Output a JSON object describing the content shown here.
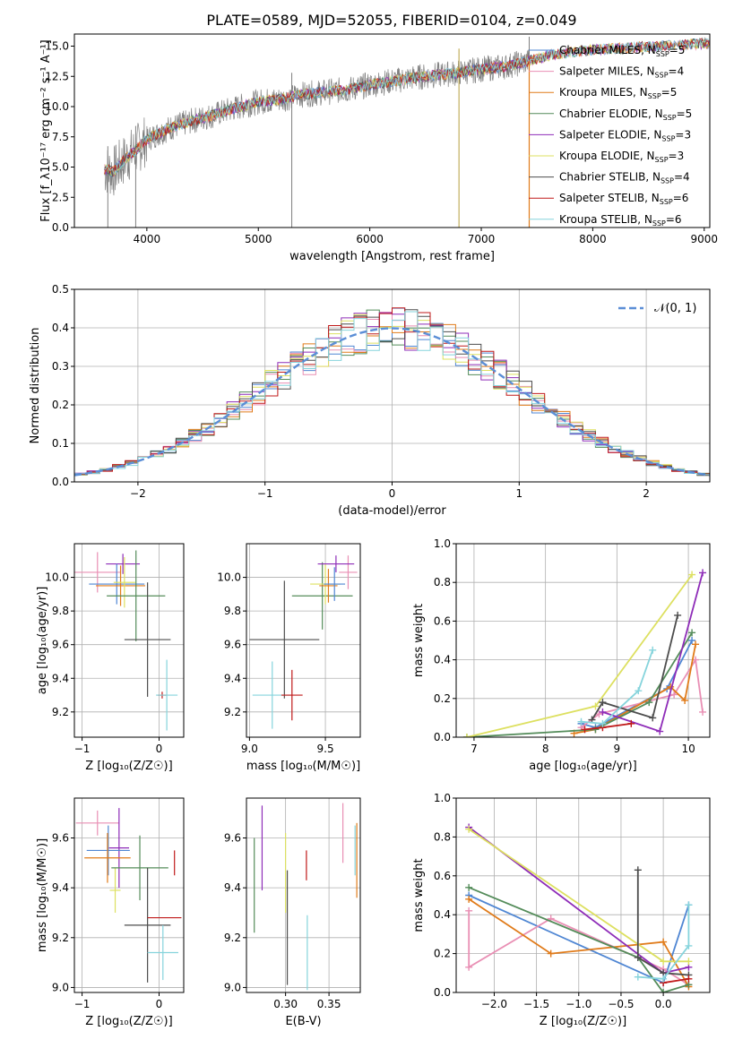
{
  "figure": {
    "title": "PLATE=0589, MJD=52055, FIBERID=0104, z=0.049"
  },
  "colors": {
    "Chabrier MILES": "#4f86d3",
    "Salpeter MILES": "#e98fb4",
    "Kroupa MILES": "#e07b1a",
    "Chabrier ELODIE": "#548c5a",
    "Salpeter ELODIE": "#8e2cb8",
    "Kroupa ELODIE": "#dde060",
    "Chabrier STELIB": "#4d4d4d",
    "Salpeter STELIB": "#c01a1a",
    "Kroupa STELIB": "#86d4dc",
    "data_gray": "#808080",
    "normal_curve": "#5b8ed6"
  },
  "chart_data": [
    {
      "id": "spectrum",
      "type": "line",
      "xlabel": "wavelength [Angstrom, rest frame]",
      "ylabel": "Flux [f_λ10⁻¹⁷ erg cm⁻² s⁻¹ A⁻¹]",
      "xlim": [
        3350,
        9050
      ],
      "ylim": [
        0,
        16
      ],
      "xticks": [
        4000,
        5000,
        6000,
        7000,
        8000,
        9000
      ],
      "yticks": [
        0.0,
        2.5,
        5.0,
        7.5,
        10.0,
        12.5,
        15.0
      ],
      "grid": false,
      "legend_loc": "right",
      "legend": [
        {
          "name": "Chabrier MILES",
          "nssp": "5"
        },
        {
          "name": "Salpeter MILES",
          "nssp": "4"
        },
        {
          "name": "Kroupa MILES",
          "nssp": "5"
        },
        {
          "name": "Chabrier ELODIE",
          "nssp": "5"
        },
        {
          "name": "Salpeter ELODIE",
          "nssp": "3"
        },
        {
          "name": "Kroupa ELODIE",
          "nssp": "3"
        },
        {
          "name": "Chabrier STELIB",
          "nssp": "4"
        },
        {
          "name": "Salpeter STELIB",
          "nssp": "6"
        },
        {
          "name": "Kroupa STELIB",
          "nssp": "6"
        }
      ],
      "data_trend": {
        "x": [
          3620,
          3700,
          3800,
          3900,
          4000,
          4200,
          4400,
          4600,
          4800,
          5000,
          5200,
          5400,
          5600,
          5800,
          6000,
          6200,
          6400,
          6600,
          6800,
          7000,
          7200,
          7400,
          7600,
          7800,
          8000,
          8200,
          8400,
          8600,
          8800,
          9000
        ],
        "y": [
          4.8,
          4.6,
          5.6,
          6.4,
          7.3,
          8.2,
          8.8,
          9.3,
          9.9,
          10.4,
          10.6,
          11.0,
          11.2,
          11.4,
          11.8,
          12.1,
          12.4,
          12.6,
          12.8,
          13.1,
          13.3,
          13.7,
          14.2,
          14.5,
          14.7,
          14.8,
          14.9,
          15.0,
          15.1,
          15.2
        ]
      },
      "data_range": [
        3620,
        7430
      ],
      "model_range": [
        3620,
        9050
      ],
      "spikes": [
        3650,
        3900,
        5300,
        6800,
        7430
      ]
    },
    {
      "id": "residuals",
      "type": "histogram",
      "xlabel": "(data-model)/error",
      "ylabel": "Normed distribution",
      "xlim": [
        -2.5,
        2.5
      ],
      "ylim": [
        0,
        0.5
      ],
      "xticks": [
        -2,
        -1,
        0,
        1,
        2
      ],
      "yticks": [
        0.0,
        0.1,
        0.2,
        0.3,
        0.4,
        0.5
      ],
      "grid": true,
      "legend_loc": "upper right",
      "curve_label": "𝒩(0, 1)",
      "bin_width": 0.1
    },
    {
      "id": "age_vs_Z",
      "type": "errorbar",
      "xlabel": "Z [log₁₀(Z/Z☉)]",
      "ylabel": "age  [log₁₀(age/yr)]",
      "xlim": [
        -1.1,
        0.32
      ],
      "ylim": [
        9.05,
        10.2
      ],
      "xticks": [
        -1,
        0
      ],
      "yticks": [
        9.2,
        9.4,
        9.6,
        9.8,
        10.0
      ],
      "grid": true,
      "points": [
        {
          "s": "Salpeter MILES",
          "x": -0.8,
          "xe": 0.3,
          "y": 10.03,
          "ye": 0.12
        },
        {
          "s": "Salpeter ELODIE",
          "x": -0.47,
          "xe": 0.22,
          "y": 10.08,
          "ye": 0.06
        },
        {
          "s": "Chabrier MILES",
          "x": -0.55,
          "xe": 0.36,
          "y": 9.96,
          "ye": 0.12
        },
        {
          "s": "Kroupa MILES",
          "x": -0.5,
          "xe": 0.32,
          "y": 9.95,
          "ye": 0.12
        },
        {
          "s": "Kroupa ELODIE",
          "x": -0.45,
          "xe": 0.14,
          "y": 9.97,
          "ye": 0.15
        },
        {
          "s": "Chabrier ELODIE",
          "x": -0.3,
          "xe": 0.38,
          "y": 9.89,
          "ye": 0.27
        },
        {
          "s": "Chabrier STELIB",
          "x": -0.15,
          "xe": 0.3,
          "y": 9.63,
          "ye": 0.34
        },
        {
          "s": "Salpeter STELIB",
          "x": 0.04,
          "xe": 0.06,
          "y": 9.3,
          "ye": 0.02
        },
        {
          "s": "Kroupa STELIB",
          "x": 0.1,
          "xe": 0.14,
          "y": 9.3,
          "ye": 0.21
        }
      ]
    },
    {
      "id": "age_vs_mass",
      "type": "errorbar",
      "xlabel": "mass [log₁₀(M/M☉)]",
      "ylabel": "",
      "xlim": [
        8.98,
        9.73
      ],
      "ylim": [
        9.05,
        10.2
      ],
      "xticks": [
        9.0,
        9.5
      ],
      "yticks": [
        9.2,
        9.4,
        9.6,
        9.8,
        10.0
      ],
      "grid": true,
      "points": [
        {
          "s": "Kroupa STELIB",
          "x": 9.15,
          "xe": 0.13,
          "y": 9.3,
          "ye": 0.2
        },
        {
          "s": "Chabrier STELIB",
          "x": 9.23,
          "xe": 0.23,
          "y": 9.63,
          "ye": 0.35
        },
        {
          "s": "Salpeter STELIB",
          "x": 9.28,
          "xe": 0.07,
          "y": 9.3,
          "ye": 0.15
        },
        {
          "s": "Chabrier ELODIE",
          "x": 9.48,
          "xe": 0.2,
          "y": 9.89,
          "ye": 0.2
        },
        {
          "s": "Kroupa ELODIE",
          "x": 9.5,
          "xe": 0.1,
          "y": 9.96,
          "ye": 0.12
        },
        {
          "s": "Kroupa MILES",
          "x": 9.52,
          "xe": 0.06,
          "y": 9.95,
          "ye": 0.1
        },
        {
          "s": "Chabrier MILES",
          "x": 9.56,
          "xe": 0.07,
          "y": 9.96,
          "ye": 0.1
        },
        {
          "s": "Salpeter MILES",
          "x": 9.65,
          "xe": 0.06,
          "y": 10.03,
          "ye": 0.1
        },
        {
          "s": "Salpeter ELODIE",
          "x": 9.57,
          "xe": 0.12,
          "y": 10.08,
          "ye": 0.05
        }
      ]
    },
    {
      "id": "massweight_vs_age",
      "type": "line",
      "xlabel": "age  [log₁₀(age/yr)]",
      "ylabel": "mass weight",
      "xlim": [
        6.75,
        10.3
      ],
      "ylim": [
        0,
        1
      ],
      "xticks": [
        7,
        8,
        9,
        10
      ],
      "yticks": [
        0.0,
        0.2,
        0.4,
        0.6,
        0.8,
        1.0
      ],
      "grid": true,
      "series": [
        {
          "s": "Chabrier MILES",
          "x": [
            8.5,
            8.7,
            9.7,
            10.05
          ],
          "y": [
            0.07,
            0.05,
            0.25,
            0.5
          ]
        },
        {
          "s": "Salpeter MILES",
          "x": [
            8.5,
            8.75,
            9.8,
            10.1,
            10.2
          ],
          "y": [
            0.05,
            0.12,
            0.22,
            0.4,
            0.13
          ]
        },
        {
          "s": "Kroupa MILES",
          "x": [
            8.4,
            8.7,
            9.75,
            9.95,
            10.1
          ],
          "y": [
            0.02,
            0.04,
            0.26,
            0.19,
            0.48
          ]
        },
        {
          "s": "Chabrier ELODIE",
          "x": [
            6.9,
            8.7,
            9.45,
            10.05
          ],
          "y": [
            0.0,
            0.04,
            0.18,
            0.54
          ]
        },
        {
          "s": "Salpeter ELODIE",
          "x": [
            8.8,
            9.6,
            10.2
          ],
          "y": [
            0.13,
            0.03,
            0.85
          ]
        },
        {
          "s": "Kroupa ELODIE",
          "x": [
            6.9,
            8.7,
            10.05
          ],
          "y": [
            0.0,
            0.16,
            0.84
          ]
        },
        {
          "s": "Chabrier STELIB",
          "x": [
            8.65,
            8.8,
            9.5,
            9.85
          ],
          "y": [
            0.09,
            0.18,
            0.1,
            0.63
          ]
        },
        {
          "s": "Salpeter STELIB",
          "x": [
            8.55,
            8.8,
            9.2
          ],
          "y": [
            0.04,
            0.05,
            0.07
          ]
        },
        {
          "s": "Kroupa STELIB",
          "x": [
            8.5,
            8.8,
            9.3,
            9.5
          ],
          "y": [
            0.08,
            0.07,
            0.24,
            0.45
          ]
        }
      ]
    },
    {
      "id": "mass_vs_Z",
      "type": "errorbar",
      "xlabel": "Z [log₁₀(Z/Z☉)]",
      "ylabel": "mass [log₁₀(M/M☉)]",
      "xlim": [
        -1.1,
        0.32
      ],
      "ylim": [
        8.98,
        9.76
      ],
      "xticks": [
        -1,
        0
      ],
      "yticks": [
        9.0,
        9.2,
        9.4,
        9.6
      ],
      "grid": true,
      "points": [
        {
          "s": "Salpeter MILES",
          "x": -0.8,
          "xe": 0.28,
          "y": 9.66,
          "ye": 0.05
        },
        {
          "s": "Salpeter ELODIE",
          "x": -0.52,
          "xe": 0.13,
          "y": 9.56,
          "ye": 0.16
        },
        {
          "s": "Chabrier MILES",
          "x": -0.66,
          "xe": 0.28,
          "y": 9.55,
          "ye": 0.1
        },
        {
          "s": "Kroupa MILES",
          "x": -0.67,
          "xe": 0.3,
          "y": 9.52,
          "ye": 0.1
        },
        {
          "s": "Kroupa ELODIE",
          "x": -0.57,
          "xe": 0.07,
          "y": 9.39,
          "ye": 0.09
        },
        {
          "s": "Chabrier ELODIE",
          "x": -0.25,
          "xe": 0.37,
          "y": 9.48,
          "ye": 0.13
        },
        {
          "s": "Chabrier STELIB",
          "x": -0.15,
          "xe": 0.3,
          "y": 9.25,
          "ye": 0.23
        },
        {
          "s": "Salpeter STELIB",
          "x": 0.07,
          "xe": 0.22,
          "y": 9.28,
          "ye": 0.0
        },
        {
          "s": "Kroupa STELIB",
          "x": 0.05,
          "xe": 0.2,
          "y": 9.14,
          "ye": 0.11
        },
        {
          "s": "Salpeter STELIB",
          "x": 0.2,
          "xe": 0.0,
          "y": 9.5,
          "ye": 0.05
        }
      ]
    },
    {
      "id": "mass_vs_EBV",
      "type": "errorbar",
      "xlabel": "E(B-V)",
      "ylabel": "",
      "xlim": [
        0.255,
        0.386
      ],
      "ylim": [
        8.98,
        9.76
      ],
      "xticks": [
        0.3,
        0.35
      ],
      "yticks": [
        9.0,
        9.2,
        9.4,
        9.6
      ],
      "grid": true,
      "points": [
        {
          "s": "Chabrier ELODIE",
          "x": 0.264,
          "ye": 0.19,
          "y": 9.41
        },
        {
          "s": "Salpeter ELODIE",
          "x": 0.273,
          "ye": 0.17,
          "y": 9.56
        },
        {
          "s": "Kroupa ELODIE",
          "x": 0.3,
          "ye": 0.16,
          "y": 9.46
        },
        {
          "s": "Chabrier STELIB",
          "x": 0.302,
          "ye": 0.23,
          "y": 9.24
        },
        {
          "s": "Salpeter STELIB",
          "x": 0.324,
          "ye": 0.06,
          "y": 9.49
        },
        {
          "s": "Kroupa STELIB",
          "x": 0.325,
          "ye": 0.15,
          "y": 9.14
        },
        {
          "s": "Salpeter MILES",
          "x": 0.366,
          "ye": 0.12,
          "y": 9.62
        },
        {
          "s": "Kroupa MILES",
          "x": 0.382,
          "ye": 0.15,
          "y": 9.51
        },
        {
          "s": "Kroupa STELIB",
          "x": 0.38,
          "ye": 0.1,
          "y": 9.55
        }
      ]
    },
    {
      "id": "massweight_vs_Z",
      "type": "line",
      "xlabel": "Z [log₁₀(Z/Z☉)]",
      "ylabel": "mass weight",
      "xlim": [
        -2.45,
        0.55
      ],
      "ylim": [
        0,
        1
      ],
      "xticks": [
        -2.0,
        -1.5,
        -1.0,
        -0.5,
        0.0
      ],
      "yticks": [
        0.0,
        0.2,
        0.4,
        0.6,
        0.8,
        1.0
      ],
      "grid": true,
      "series": [
        {
          "s": "Chabrier MILES",
          "x": [
            -2.3,
            0.0,
            0.3
          ],
          "y": [
            0.5,
            0.05,
            0.45
          ]
        },
        {
          "s": "Salpeter MILES",
          "x": [
            -2.3,
            -2.3,
            -1.33,
            0.0,
            0.3
          ],
          "y": [
            0.42,
            0.13,
            0.38,
            0.12,
            0.04
          ]
        },
        {
          "s": "Kroupa MILES",
          "x": [
            -2.3,
            -1.33,
            0.0,
            0.3
          ],
          "y": [
            0.48,
            0.2,
            0.26,
            0.03
          ]
        },
        {
          "s": "Chabrier ELODIE",
          "x": [
            -2.3,
            -0.3,
            0.0,
            0.3
          ],
          "y": [
            0.54,
            0.18,
            0.0,
            0.04
          ]
        },
        {
          "s": "Salpeter ELODIE",
          "x": [
            -2.3,
            0.0,
            0.3
          ],
          "y": [
            0.85,
            0.1,
            0.13
          ]
        },
        {
          "s": "Kroupa ELODIE",
          "x": [
            -2.3,
            0.0,
            0.3
          ],
          "y": [
            0.84,
            0.16,
            0.16
          ]
        },
        {
          "s": "Chabrier STELIB",
          "x": [
            -0.3,
            -0.3,
            0.0,
            0.3
          ],
          "y": [
            0.63,
            0.18,
            0.1,
            0.09
          ]
        },
        {
          "s": "Salpeter STELIB",
          "x": [
            0.0,
            0.3
          ],
          "y": [
            0.05,
            0.07
          ]
        },
        {
          "s": "Kroupa STELIB",
          "x": [
            -0.3,
            0.0,
            0.3,
            0.3
          ],
          "y": [
            0.08,
            0.07,
            0.24,
            0.45
          ]
        }
      ]
    }
  ]
}
